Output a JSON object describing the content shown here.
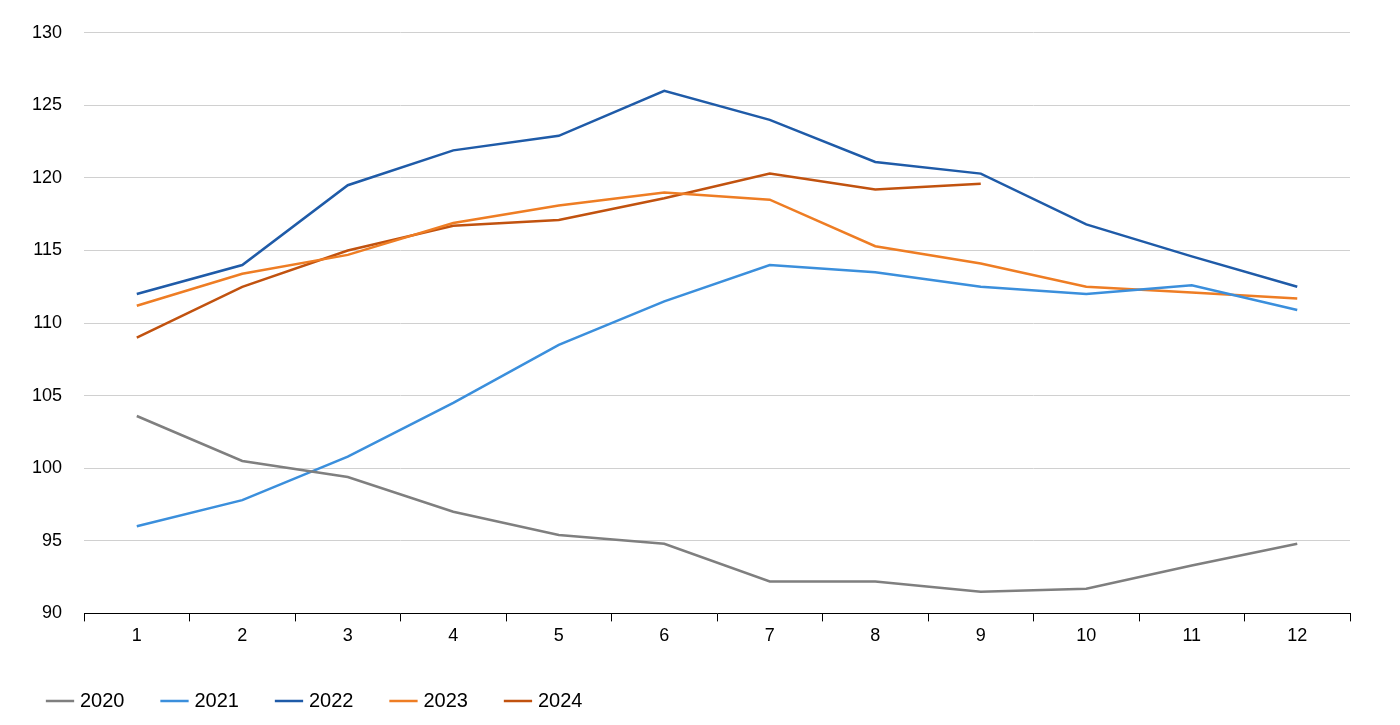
{
  "chart_data": {
    "type": "line",
    "categories": [
      1,
      2,
      3,
      4,
      5,
      6,
      7,
      8,
      9,
      10,
      11,
      12
    ],
    "series": [
      {
        "name": "2020",
        "color": "#7f7f7f",
        "values": [
          103.6,
          100.5,
          99.4,
          97.0,
          95.4,
          94.8,
          92.2,
          92.2,
          91.5,
          91.7,
          93.3,
          94.8
        ]
      },
      {
        "name": "2021",
        "color": "#3b8fdc",
        "values": [
          96.0,
          97.8,
          100.8,
          104.5,
          108.5,
          111.5,
          114.0,
          113.5,
          112.5,
          112.0,
          112.6,
          110.9
        ]
      },
      {
        "name": "2022",
        "color": "#1f5ba8",
        "values": [
          112.0,
          114.0,
          119.5,
          121.9,
          122.9,
          126.0,
          124.0,
          121.1,
          120.3,
          116.8,
          114.6,
          112.5
        ]
      },
      {
        "name": "2023",
        "color": "#ee7d24",
        "values": [
          111.2,
          113.4,
          114.7,
          116.9,
          118.1,
          119.0,
          118.5,
          115.3,
          114.1,
          112.5,
          112.1,
          111.7
        ]
      },
      {
        "name": "2024",
        "color": "#c1520f",
        "values": [
          109.0,
          112.5,
          115.0,
          116.7,
          117.1,
          118.6,
          120.3,
          119.2,
          119.6,
          null,
          null,
          null
        ]
      }
    ],
    "ylim": [
      90,
      130
    ],
    "yticks": [
      90,
      95,
      100,
      105,
      110,
      115,
      120,
      125,
      130
    ],
    "grid": true,
    "legend": "bottom-left"
  }
}
